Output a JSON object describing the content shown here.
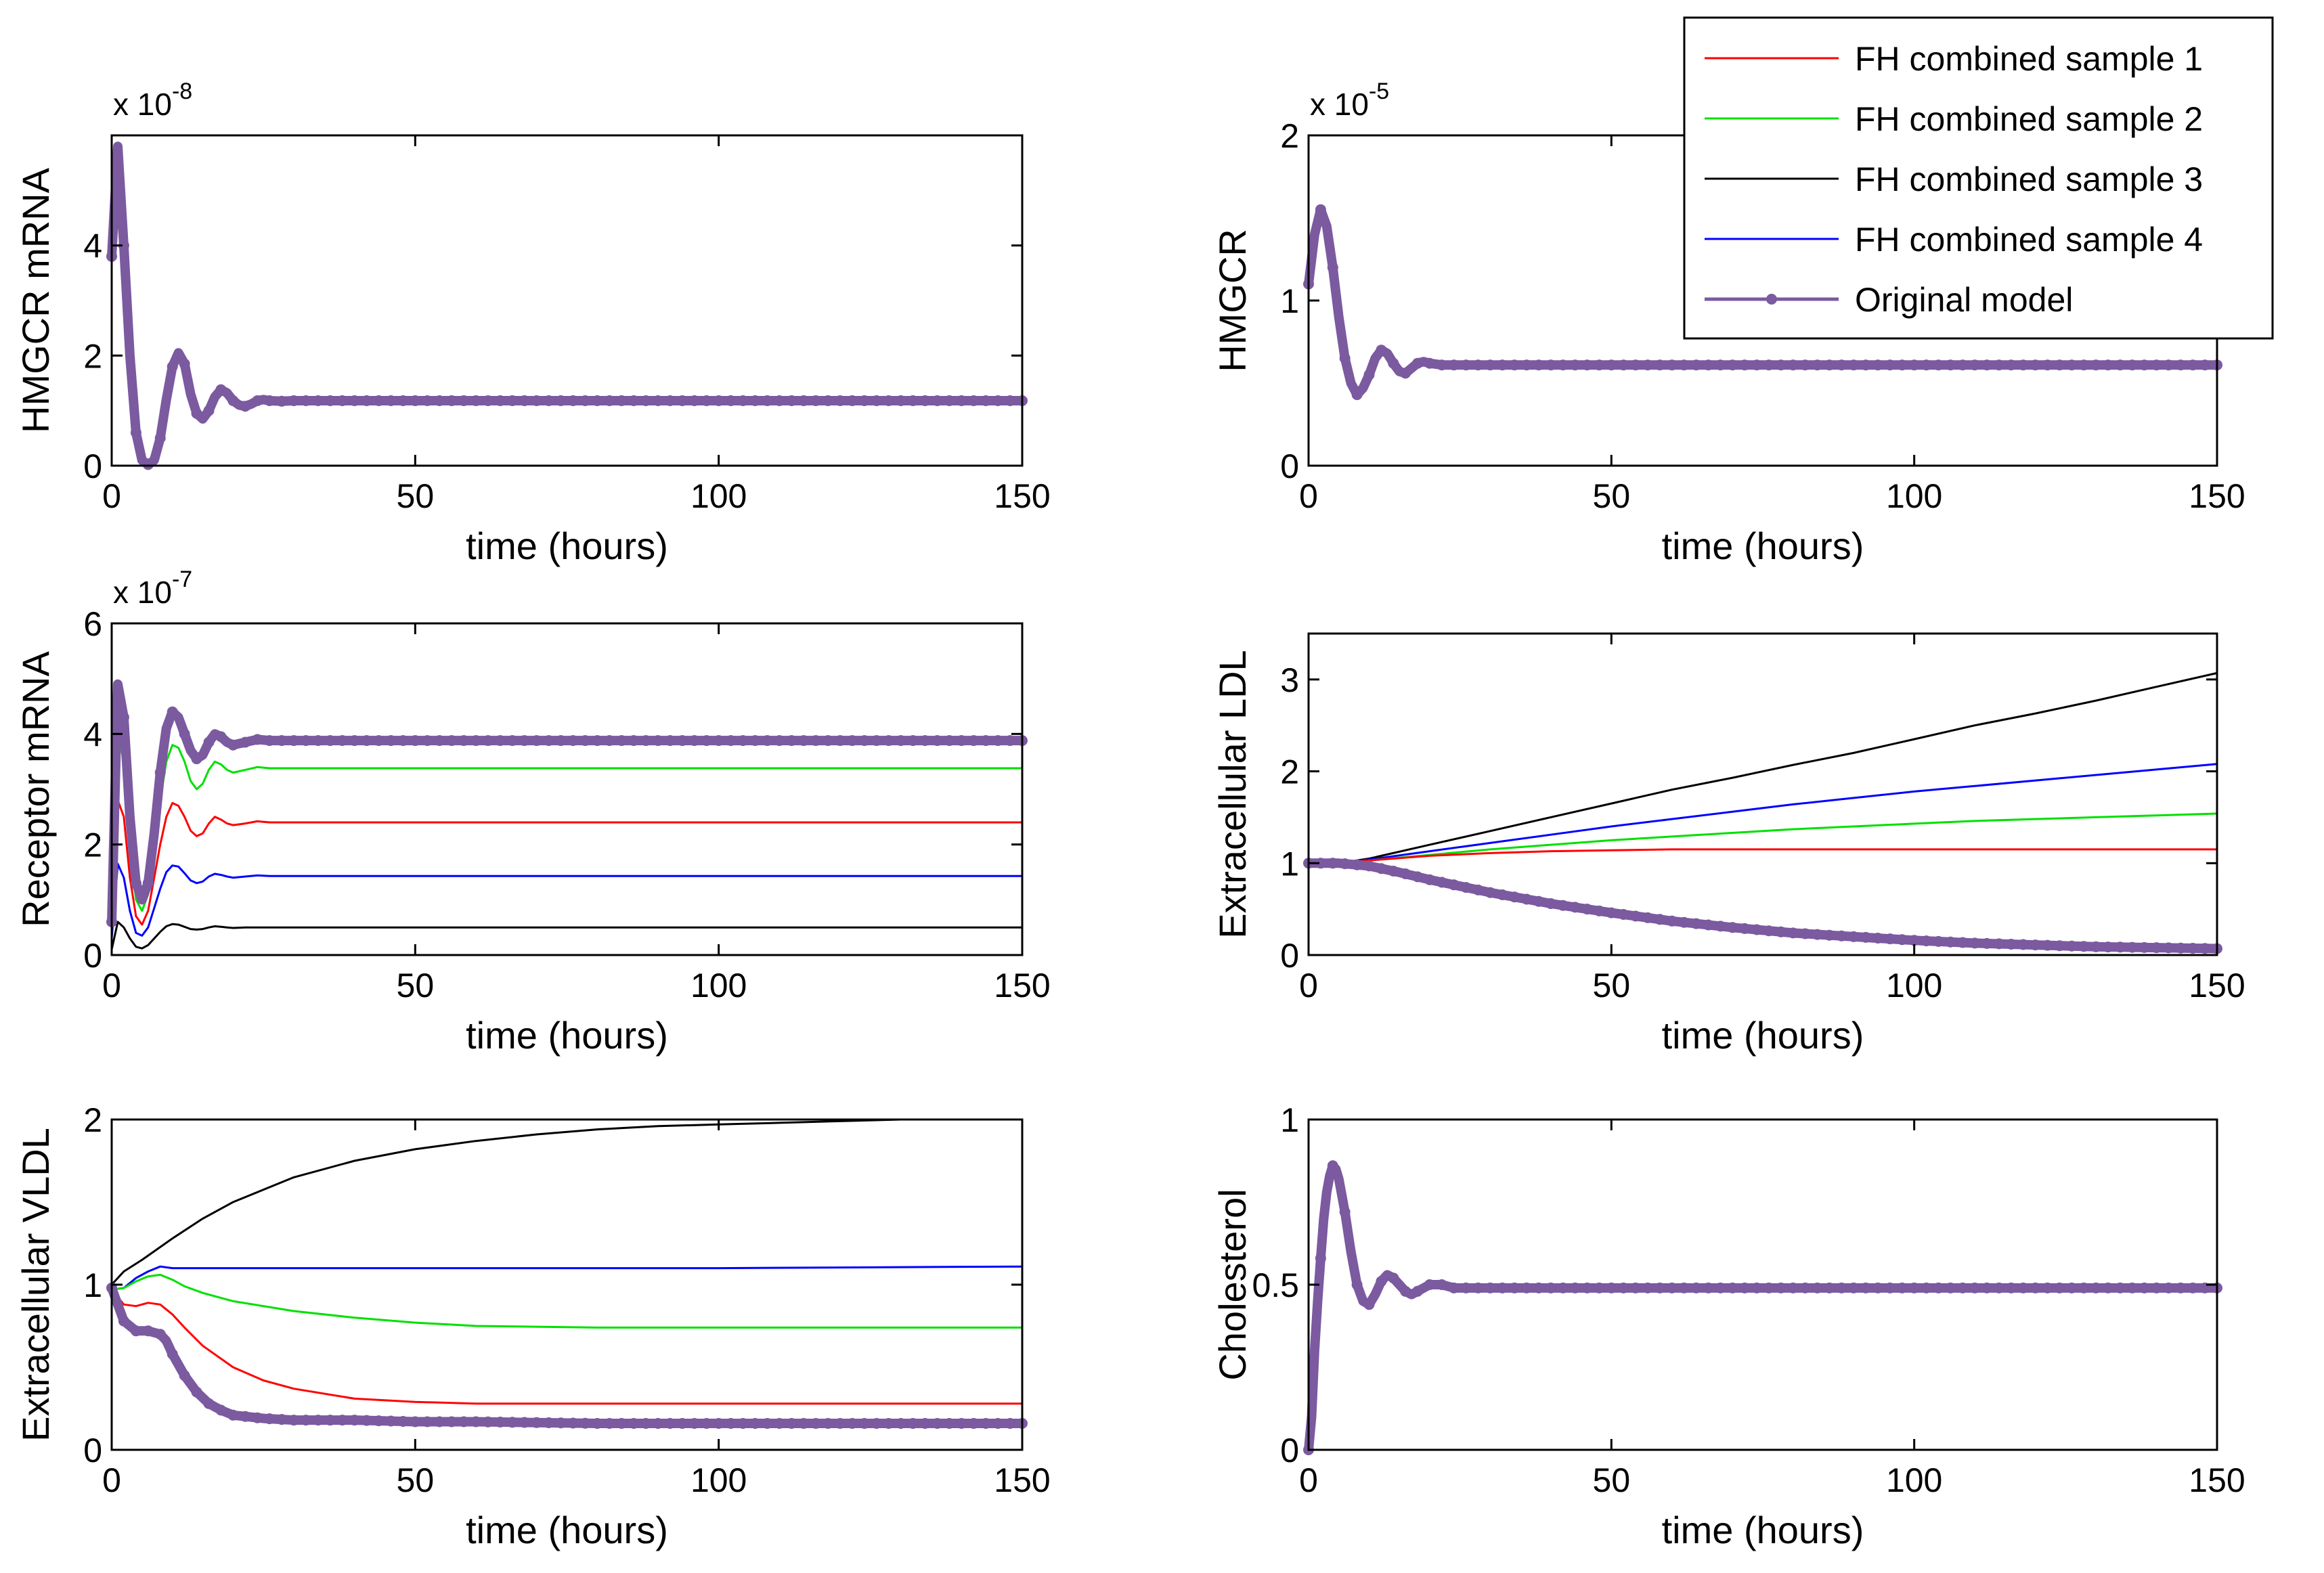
{
  "colors": {
    "sample1": "#ff0000",
    "sample2": "#00e000",
    "sample3": "#000000",
    "sample4": "#0000ff",
    "original": "#7b5aa0"
  },
  "legend": {
    "entries": [
      "FH combined sample 1",
      "FH combined sample 2",
      "FH combined sample 3",
      "FH combined sample 4",
      "Original model"
    ]
  },
  "chart_data": [
    {
      "type": "line",
      "ylabel": "HMGCR mRNA",
      "xlabel": "time (hours)",
      "exponent_base": "x 10",
      "exponent_power": "-8",
      "xlim": [
        0,
        150
      ],
      "ylim": [
        0,
        6
      ],
      "xticks": [
        "0",
        "50",
        "100",
        "150"
      ],
      "yticks": [
        "0",
        "2",
        "4"
      ],
      "ytick_values": [
        0,
        2,
        4
      ],
      "series": [
        {
          "name": "Original model",
          "key": "original",
          "x": [
            0,
            1,
            2,
            3,
            4,
            5,
            6,
            7,
            8,
            9,
            10,
            11,
            12,
            13,
            14,
            15,
            16,
            17,
            18,
            19,
            20,
            21,
            22,
            23,
            24,
            25,
            26,
            28,
            30,
            35,
            40,
            50,
            60,
            80,
            100,
            120,
            150
          ],
          "y": [
            3.8,
            5.8,
            4.0,
            2.0,
            0.6,
            0.1,
            0.02,
            0.1,
            0.5,
            1.2,
            1.8,
            2.05,
            1.85,
            1.3,
            0.95,
            0.85,
            1.0,
            1.25,
            1.38,
            1.32,
            1.18,
            1.1,
            1.08,
            1.12,
            1.18,
            1.2,
            1.18,
            1.17,
            1.18,
            1.18,
            1.18,
            1.18,
            1.18,
            1.18,
            1.18,
            1.18,
            1.18
          ]
        }
      ]
    },
    {
      "type": "line",
      "ylabel": "HMGCR",
      "xlabel": "time (hours)",
      "exponent_base": "x 10",
      "exponent_power": "-5",
      "xlim": [
        0,
        150
      ],
      "ylim": [
        0,
        2
      ],
      "xticks": [
        "0",
        "50",
        "100",
        "150"
      ],
      "yticks": [
        "0",
        "1",
        "2"
      ],
      "ytick_values": [
        0,
        1,
        2
      ],
      "series": [
        {
          "name": "Original model",
          "key": "original",
          "x": [
            0,
            1,
            2,
            3,
            4,
            5,
            6,
            7,
            8,
            9,
            10,
            11,
            12,
            13,
            14,
            15,
            16,
            17,
            18,
            19,
            20,
            22,
            24,
            26,
            30,
            40,
            50,
            70,
            100,
            150
          ],
          "y": [
            1.1,
            1.4,
            1.55,
            1.45,
            1.2,
            0.9,
            0.65,
            0.5,
            0.43,
            0.47,
            0.55,
            0.65,
            0.7,
            0.68,
            0.62,
            0.57,
            0.56,
            0.59,
            0.62,
            0.63,
            0.62,
            0.61,
            0.61,
            0.61,
            0.61,
            0.61,
            0.61,
            0.61,
            0.61,
            0.61
          ]
        }
      ]
    },
    {
      "type": "line",
      "ylabel": "Receptor mRNA",
      "xlabel": "time (hours)",
      "exponent_base": "x 10",
      "exponent_power": "-7",
      "xlim": [
        0,
        150
      ],
      "ylim": [
        0,
        6
      ],
      "xticks": [
        "0",
        "50",
        "100",
        "150"
      ],
      "yticks": [
        "0",
        "2",
        "4",
        "6"
      ],
      "ytick_values": [
        0,
        2,
        4,
        6
      ],
      "series": [
        {
          "name": "FH combined sample 2",
          "key": "sample2",
          "x": [
            0,
            1,
            2,
            3,
            4,
            5,
            6,
            7,
            8,
            9,
            10,
            11,
            12,
            13,
            14,
            15,
            16,
            17,
            18,
            19,
            20,
            22,
            24,
            26,
            30,
            40,
            150
          ],
          "y": [
            0.5,
            4.0,
            3.5,
            2.0,
            1.0,
            0.8,
            1.1,
            1.9,
            2.8,
            3.5,
            3.8,
            3.75,
            3.5,
            3.15,
            3.0,
            3.1,
            3.35,
            3.5,
            3.45,
            3.35,
            3.3,
            3.35,
            3.4,
            3.38,
            3.38,
            3.38,
            3.38
          ]
        },
        {
          "name": "FH combined sample 1",
          "key": "sample1",
          "x": [
            0,
            1,
            2,
            3,
            4,
            5,
            6,
            7,
            8,
            9,
            10,
            11,
            12,
            13,
            14,
            15,
            16,
            17,
            18,
            19,
            20,
            22,
            24,
            26,
            30,
            40,
            150
          ],
          "y": [
            0.4,
            2.8,
            2.5,
            1.4,
            0.7,
            0.55,
            0.8,
            1.4,
            2.0,
            2.5,
            2.75,
            2.7,
            2.5,
            2.25,
            2.15,
            2.2,
            2.38,
            2.5,
            2.45,
            2.38,
            2.35,
            2.38,
            2.42,
            2.4,
            2.4,
            2.4,
            2.4
          ]
        },
        {
          "name": "FH combined sample 4",
          "key": "sample4",
          "x": [
            0,
            1,
            2,
            3,
            4,
            5,
            6,
            7,
            8,
            9,
            10,
            11,
            12,
            13,
            14,
            15,
            16,
            17,
            18,
            19,
            20,
            22,
            24,
            26,
            30,
            40,
            150
          ],
          "y": [
            0.3,
            1.65,
            1.4,
            0.8,
            0.4,
            0.35,
            0.5,
            0.85,
            1.2,
            1.5,
            1.62,
            1.6,
            1.48,
            1.35,
            1.3,
            1.33,
            1.42,
            1.47,
            1.45,
            1.42,
            1.4,
            1.42,
            1.44,
            1.43,
            1.43,
            1.43,
            1.43
          ]
        },
        {
          "name": "FH combined sample 3",
          "key": "sample3",
          "x": [
            0,
            1,
            2,
            3,
            4,
            5,
            6,
            7,
            8,
            9,
            10,
            11,
            12,
            13,
            14,
            15,
            16,
            17,
            18,
            19,
            20,
            22,
            24,
            26,
            30,
            40,
            150
          ],
          "y": [
            0.1,
            0.6,
            0.5,
            0.3,
            0.15,
            0.12,
            0.18,
            0.3,
            0.42,
            0.52,
            0.56,
            0.55,
            0.51,
            0.47,
            0.46,
            0.47,
            0.5,
            0.52,
            0.51,
            0.5,
            0.49,
            0.5,
            0.5,
            0.5,
            0.5,
            0.5,
            0.5
          ]
        },
        {
          "name": "Original model",
          "key": "original",
          "x": [
            0,
            1,
            2,
            3,
            4,
            5,
            6,
            7,
            8,
            9,
            10,
            11,
            12,
            13,
            14,
            15,
            16,
            17,
            18,
            19,
            20,
            22,
            24,
            26,
            30,
            40,
            60,
            150
          ],
          "y": [
            0.6,
            4.9,
            4.3,
            2.5,
            1.3,
            1.0,
            1.3,
            2.2,
            3.3,
            4.1,
            4.4,
            4.3,
            4.0,
            3.7,
            3.55,
            3.62,
            3.85,
            4.0,
            3.95,
            3.85,
            3.8,
            3.85,
            3.9,
            3.88,
            3.88,
            3.88,
            3.88,
            3.88
          ]
        }
      ]
    },
    {
      "type": "line",
      "ylabel": "Extracellular LDL",
      "xlabel": "time (hours)",
      "xlim": [
        0,
        150
      ],
      "ylim": [
        0,
        3.5
      ],
      "xticks": [
        "0",
        "50",
        "100",
        "150"
      ],
      "yticks": [
        "0",
        "1",
        "2",
        "3"
      ],
      "ytick_values": [
        0,
        1,
        2,
        3
      ],
      "series": [
        {
          "name": "FH combined sample 3",
          "key": "sample3",
          "x": [
            0,
            5,
            10,
            20,
            30,
            40,
            50,
            60,
            70,
            80,
            90,
            100,
            110,
            120,
            130,
            140,
            150
          ],
          "y": [
            1.0,
            1.0,
            1.05,
            1.2,
            1.35,
            1.5,
            1.65,
            1.8,
            1.93,
            2.07,
            2.2,
            2.35,
            2.5,
            2.63,
            2.77,
            2.92,
            3.07
          ]
        },
        {
          "name": "FH combined sample 4",
          "key": "sample4",
          "x": [
            0,
            5,
            10,
            20,
            30,
            40,
            50,
            60,
            70,
            80,
            90,
            100,
            110,
            120,
            130,
            140,
            150
          ],
          "y": [
            1.0,
            1.0,
            1.04,
            1.13,
            1.22,
            1.31,
            1.4,
            1.48,
            1.56,
            1.64,
            1.71,
            1.78,
            1.84,
            1.9,
            1.96,
            2.02,
            2.08
          ]
        },
        {
          "name": "FH combined sample 2",
          "key": "sample2",
          "x": [
            0,
            5,
            10,
            20,
            30,
            40,
            50,
            60,
            70,
            80,
            90,
            100,
            110,
            120,
            130,
            140,
            150
          ],
          "y": [
            1.0,
            1.0,
            1.03,
            1.09,
            1.15,
            1.2,
            1.25,
            1.29,
            1.33,
            1.37,
            1.4,
            1.43,
            1.46,
            1.48,
            1.5,
            1.52,
            1.54
          ]
        },
        {
          "name": "FH combined sample 1",
          "key": "sample1",
          "x": [
            0,
            5,
            10,
            20,
            30,
            40,
            50,
            60,
            80,
            100,
            120,
            150
          ],
          "y": [
            1.0,
            1.0,
            1.03,
            1.08,
            1.11,
            1.13,
            1.14,
            1.15,
            1.15,
            1.15,
            1.15,
            1.15
          ]
        },
        {
          "name": "Original model",
          "key": "original",
          "x": [
            0,
            5,
            10,
            15,
            20,
            30,
            40,
            50,
            60,
            70,
            80,
            90,
            100,
            110,
            120,
            130,
            140,
            150
          ],
          "y": [
            1.0,
            1.0,
            0.97,
            0.9,
            0.82,
            0.68,
            0.56,
            0.46,
            0.37,
            0.3,
            0.24,
            0.2,
            0.16,
            0.13,
            0.11,
            0.09,
            0.08,
            0.07
          ]
        }
      ]
    },
    {
      "type": "line",
      "ylabel": "Extracellular VLDL",
      "xlabel": "time (hours)",
      "xlim": [
        0,
        150
      ],
      "ylim": [
        0,
        2
      ],
      "xticks": [
        "0",
        "50",
        "100",
        "150"
      ],
      "yticks": [
        "0",
        "1",
        "2"
      ],
      "ytick_values": [
        0,
        1,
        2
      ],
      "series": [
        {
          "name": "FH combined sample 3",
          "key": "sample3",
          "x": [
            0,
            2,
            5,
            10,
            15,
            20,
            30,
            40,
            50,
            60,
            70,
            80,
            90,
            100,
            110,
            120,
            130
          ],
          "y": [
            1.0,
            1.08,
            1.15,
            1.28,
            1.4,
            1.5,
            1.65,
            1.75,
            1.82,
            1.87,
            1.91,
            1.94,
            1.96,
            1.97,
            1.98,
            1.99,
            2.0
          ]
        },
        {
          "name": "FH combined sample 4",
          "key": "sample4",
          "x": [
            0,
            2,
            4,
            6,
            8,
            10,
            12,
            15,
            20,
            30,
            50,
            100,
            150
          ],
          "y": [
            0.97,
            0.98,
            1.04,
            1.08,
            1.11,
            1.1,
            1.1,
            1.1,
            1.1,
            1.1,
            1.1,
            1.1,
            1.11
          ]
        },
        {
          "name": "FH combined sample 2",
          "key": "sample2",
          "x": [
            0,
            2,
            4,
            6,
            8,
            10,
            12,
            15,
            20,
            30,
            40,
            50,
            60,
            80,
            100,
            150
          ],
          "y": [
            0.97,
            0.98,
            1.02,
            1.05,
            1.06,
            1.03,
            0.99,
            0.95,
            0.9,
            0.84,
            0.8,
            0.77,
            0.75,
            0.74,
            0.74,
            0.74
          ]
        },
        {
          "name": "FH combined sample 1",
          "key": "sample1",
          "x": [
            0,
            2,
            4,
            6,
            8,
            10,
            12,
            15,
            20,
            25,
            30,
            40,
            50,
            60,
            80,
            100,
            150
          ],
          "y": [
            0.97,
            0.88,
            0.87,
            0.89,
            0.88,
            0.82,
            0.74,
            0.63,
            0.5,
            0.42,
            0.37,
            0.31,
            0.29,
            0.28,
            0.28,
            0.28,
            0.28
          ]
        },
        {
          "name": "Original model",
          "key": "original",
          "x": [
            0,
            2,
            4,
            6,
            8,
            9,
            10,
            12,
            14,
            16,
            18,
            20,
            25,
            30,
            40,
            50,
            60,
            80,
            100,
            150
          ],
          "y": [
            0.98,
            0.78,
            0.72,
            0.72,
            0.7,
            0.66,
            0.58,
            0.45,
            0.35,
            0.28,
            0.24,
            0.21,
            0.19,
            0.18,
            0.18,
            0.17,
            0.17,
            0.16,
            0.16,
            0.16
          ]
        }
      ]
    },
    {
      "type": "line",
      "ylabel": "Cholesterol",
      "xlabel": "time (hours)",
      "xlim": [
        0,
        150
      ],
      "ylim": [
        0,
        1
      ],
      "xticks": [
        "0",
        "50",
        "100",
        "150"
      ],
      "yticks": [
        "0",
        "0.5",
        "1"
      ],
      "ytick_values": [
        0,
        0.5,
        1
      ],
      "series": [
        {
          "name": "Original model",
          "key": "original",
          "x": [
            0,
            0.5,
            1,
            1.5,
            2,
            2.5,
            3,
            3.5,
            4,
            4.5,
            5,
            6,
            7,
            8,
            9,
            10,
            11,
            12,
            13,
            14,
            15,
            16,
            17,
            18,
            19,
            20,
            22,
            24,
            26,
            30,
            40,
            50,
            150
          ],
          "y": [
            0,
            0.1,
            0.3,
            0.45,
            0.58,
            0.7,
            0.78,
            0.83,
            0.86,
            0.85,
            0.82,
            0.72,
            0.6,
            0.5,
            0.45,
            0.44,
            0.47,
            0.51,
            0.53,
            0.52,
            0.5,
            0.48,
            0.47,
            0.48,
            0.49,
            0.5,
            0.5,
            0.49,
            0.49,
            0.49,
            0.49,
            0.49,
            0.49
          ]
        }
      ]
    }
  ]
}
